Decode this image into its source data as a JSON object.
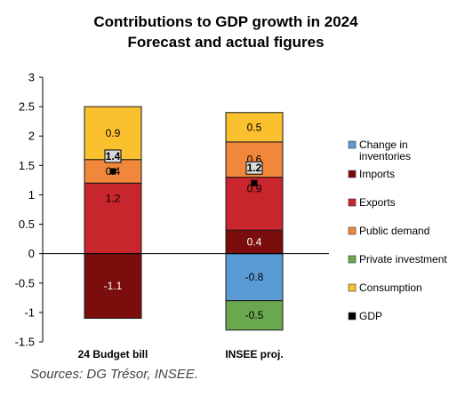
{
  "chart_data": {
    "type": "bar",
    "stacked": true,
    "title": "Contributions to GDP growth in 2024",
    "subtitle": "Forecast and actual figures",
    "categories": [
      "24 Budget bill",
      "INSEE proj."
    ],
    "ylim": [
      -1.5,
      3
    ],
    "yticks": [
      "3",
      "2.5",
      "2",
      "1.5",
      "1",
      "0.5",
      "0",
      "-0.5",
      "-1",
      "-1.5"
    ],
    "ytick_values": [
      3,
      2.5,
      2,
      1.5,
      1,
      0.5,
      0,
      -0.5,
      -1,
      -1.5
    ],
    "grid": false,
    "legend_position": "right",
    "series": [
      {
        "name": "Change in inventories",
        "color": "#5b9bd5",
        "values": [
          0.0,
          -0.8
        ],
        "labels": [
          "",
          "-0.8"
        ],
        "label_color": "#000000"
      },
      {
        "name": "Imports",
        "color": "#7b0d0d",
        "values": [
          -1.1,
          0.4
        ],
        "labels": [
          "-1.1",
          "0.4"
        ],
        "label_color": "#ffffff"
      },
      {
        "name": "Exports",
        "color": "#c8252c",
        "values": [
          1.2,
          0.9
        ],
        "labels": [
          "1.2",
          "0.9"
        ],
        "label_color": "#000000"
      },
      {
        "name": "Public demand",
        "color": "#f0873a",
        "values": [
          0.4,
          0.6
        ],
        "labels": [
          "0.4",
          "0.6"
        ],
        "label_color": "#000000"
      },
      {
        "name": "Private investment",
        "color": "#6aa84f",
        "values": [
          0.0,
          -0.5
        ],
        "labels": [
          "",
          "-0.5"
        ],
        "label_color": "#000000"
      },
      {
        "name": "Consumption",
        "color": "#fbc02d",
        "values": [
          0.9,
          0.5
        ],
        "labels": [
          "0.9",
          "0.5"
        ],
        "label_color": "#000000"
      }
    ],
    "gdp": {
      "name": "GDP",
      "color": "#000000",
      "values": [
        1.4,
        1.2
      ],
      "labels": [
        "1.4",
        "1.2"
      ]
    }
  },
  "source": "Sources: DG Trésor, INSEE."
}
